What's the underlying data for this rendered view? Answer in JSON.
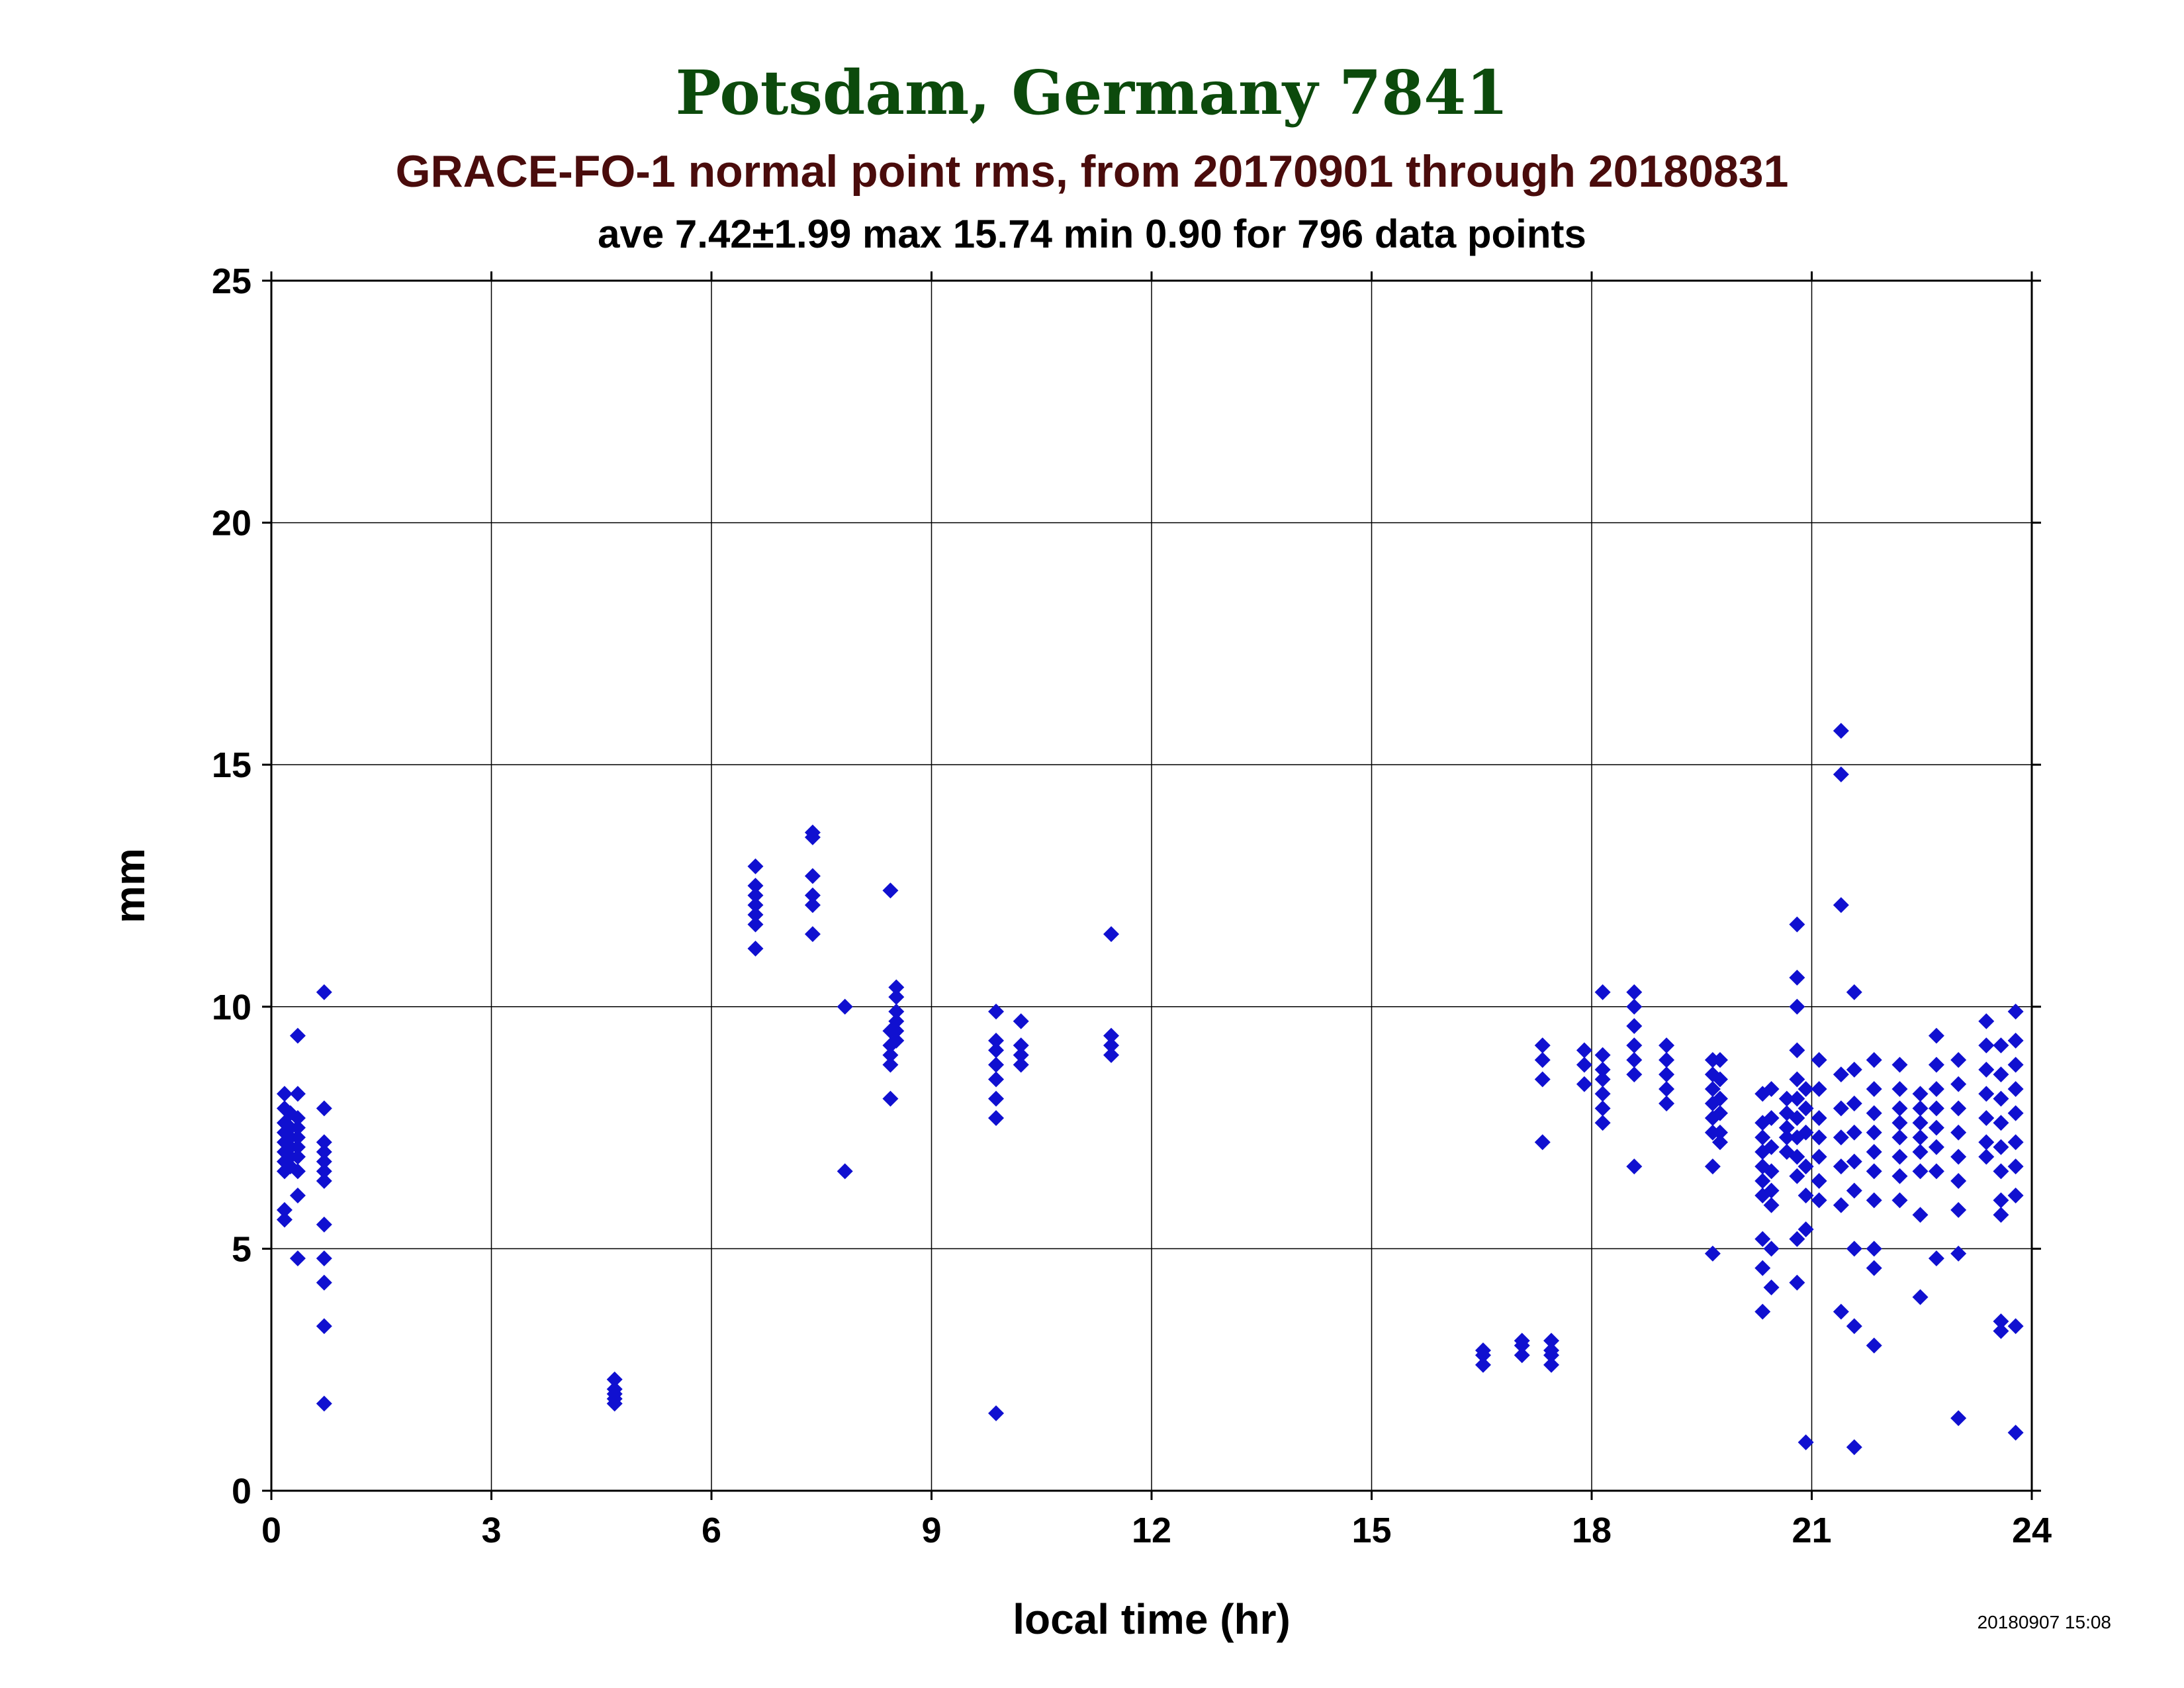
{
  "chart_data": {
    "type": "scatter",
    "title": "Potsdam, Germany 7841",
    "subtitle": "GRACE-FO-1 normal point rms, from 20170901 through 20180831",
    "stats_line": "ave 7.42±1.99 max 15.74 min 0.90 for 796 data points",
    "xlabel": "local time (hr)",
    "ylabel": "mm",
    "timestamp": "20180907 15:08",
    "xlim": [
      0,
      24
    ],
    "ylim": [
      0,
      25
    ],
    "xticks": [
      0,
      3,
      6,
      9,
      12,
      15,
      18,
      21,
      24
    ],
    "yticks": [
      0,
      5,
      10,
      15,
      20,
      25
    ],
    "xtick_labels": [
      "0",
      "3",
      "6",
      "9",
      "12",
      "15",
      "18",
      "21",
      "24"
    ],
    "ytick_labels": [
      "0",
      "5",
      "10",
      "15",
      "20",
      "25"
    ],
    "grid": true,
    "colors": {
      "title": "#0c4a0c",
      "subtitle": "#4a0c0c",
      "marker": "#1010d0",
      "text": "#000000"
    },
    "marker": "diamond",
    "points": [
      [
        0.18,
        8.2
      ],
      [
        0.18,
        7.9
      ],
      [
        0.18,
        7.6
      ],
      [
        0.18,
        7.4
      ],
      [
        0.18,
        7.2
      ],
      [
        0.18,
        7.0
      ],
      [
        0.18,
        6.8
      ],
      [
        0.18,
        6.6
      ],
      [
        0.18,
        5.8
      ],
      [
        0.18,
        5.6
      ],
      [
        0.26,
        7.8
      ],
      [
        0.26,
        7.5
      ],
      [
        0.26,
        7.3
      ],
      [
        0.26,
        7.1
      ],
      [
        0.26,
        6.9
      ],
      [
        0.26,
        6.7
      ],
      [
        0.36,
        9.4
      ],
      [
        0.36,
        8.2
      ],
      [
        0.36,
        7.7
      ],
      [
        0.36,
        7.5
      ],
      [
        0.36,
        7.3
      ],
      [
        0.36,
        7.1
      ],
      [
        0.36,
        6.9
      ],
      [
        0.36,
        6.6
      ],
      [
        0.36,
        6.1
      ],
      [
        0.36,
        4.8
      ],
      [
        0.72,
        10.3
      ],
      [
        0.72,
        7.9
      ],
      [
        0.72,
        7.2
      ],
      [
        0.72,
        7.0
      ],
      [
        0.72,
        6.8
      ],
      [
        0.72,
        6.6
      ],
      [
        0.72,
        6.4
      ],
      [
        0.72,
        5.5
      ],
      [
        0.72,
        4.8
      ],
      [
        0.72,
        4.3
      ],
      [
        0.72,
        3.4
      ],
      [
        0.72,
        1.8
      ],
      [
        4.68,
        2.3
      ],
      [
        4.68,
        2.1
      ],
      [
        4.68,
        2.0
      ],
      [
        4.68,
        1.9
      ],
      [
        4.68,
        1.8
      ],
      [
        6.6,
        12.9
      ],
      [
        6.6,
        12.5
      ],
      [
        6.6,
        12.3
      ],
      [
        6.6,
        12.1
      ],
      [
        6.6,
        11.9
      ],
      [
        6.6,
        11.7
      ],
      [
        6.6,
        11.2
      ],
      [
        7.38,
        13.6
      ],
      [
        7.38,
        13.5
      ],
      [
        7.38,
        12.7
      ],
      [
        7.38,
        12.3
      ],
      [
        7.38,
        12.1
      ],
      [
        7.38,
        11.5
      ],
      [
        7.82,
        10.0
      ],
      [
        7.82,
        6.6
      ],
      [
        8.44,
        12.4
      ],
      [
        8.44,
        9.5
      ],
      [
        8.44,
        9.2
      ],
      [
        8.44,
        9.0
      ],
      [
        8.44,
        8.8
      ],
      [
        8.44,
        8.1
      ],
      [
        8.52,
        10.4
      ],
      [
        8.52,
        10.2
      ],
      [
        8.52,
        9.9
      ],
      [
        8.52,
        9.7
      ],
      [
        8.52,
        9.5
      ],
      [
        8.52,
        9.3
      ],
      [
        9.88,
        9.9
      ],
      [
        9.88,
        9.3
      ],
      [
        9.88,
        9.1
      ],
      [
        9.88,
        8.8
      ],
      [
        9.88,
        8.5
      ],
      [
        9.88,
        8.1
      ],
      [
        9.88,
        7.7
      ],
      [
        9.88,
        1.6
      ],
      [
        10.22,
        9.7
      ],
      [
        10.22,
        9.2
      ],
      [
        10.22,
        9.0
      ],
      [
        10.22,
        8.8
      ],
      [
        11.45,
        11.5
      ],
      [
        11.45,
        9.4
      ],
      [
        11.45,
        9.2
      ],
      [
        11.45,
        9.0
      ],
      [
        16.52,
        2.9
      ],
      [
        16.52,
        2.8
      ],
      [
        16.52,
        2.6
      ],
      [
        17.05,
        3.1
      ],
      [
        17.05,
        3.0
      ],
      [
        17.05,
        2.8
      ],
      [
        17.33,
        9.2
      ],
      [
        17.33,
        8.9
      ],
      [
        17.33,
        8.5
      ],
      [
        17.33,
        7.2
      ],
      [
        17.45,
        3.1
      ],
      [
        17.45,
        2.9
      ],
      [
        17.45,
        2.8
      ],
      [
        17.45,
        2.6
      ],
      [
        17.9,
        9.1
      ],
      [
        17.9,
        8.8
      ],
      [
        17.9,
        8.4
      ],
      [
        18.15,
        10.3
      ],
      [
        18.15,
        9.0
      ],
      [
        18.15,
        8.7
      ],
      [
        18.15,
        8.5
      ],
      [
        18.15,
        8.2
      ],
      [
        18.15,
        7.9
      ],
      [
        18.15,
        7.6
      ],
      [
        18.58,
        10.3
      ],
      [
        18.58,
        10.0
      ],
      [
        18.58,
        9.6
      ],
      [
        18.58,
        9.2
      ],
      [
        18.58,
        8.9
      ],
      [
        18.58,
        8.6
      ],
      [
        18.58,
        6.7
      ],
      [
        19.02,
        9.2
      ],
      [
        19.02,
        8.9
      ],
      [
        19.02,
        8.6
      ],
      [
        19.02,
        8.3
      ],
      [
        19.02,
        8.0
      ],
      [
        19.65,
        8.9
      ],
      [
        19.65,
        8.6
      ],
      [
        19.65,
        8.3
      ],
      [
        19.65,
        8.0
      ],
      [
        19.65,
        7.7
      ],
      [
        19.65,
        7.4
      ],
      [
        19.65,
        6.7
      ],
      [
        19.65,
        4.9
      ],
      [
        19.75,
        8.9
      ],
      [
        19.75,
        8.5
      ],
      [
        19.75,
        8.1
      ],
      [
        19.75,
        7.8
      ],
      [
        19.75,
        7.4
      ],
      [
        19.75,
        7.2
      ],
      [
        20.33,
        8.2
      ],
      [
        20.33,
        7.6
      ],
      [
        20.33,
        7.3
      ],
      [
        20.33,
        7.0
      ],
      [
        20.33,
        6.7
      ],
      [
        20.33,
        6.4
      ],
      [
        20.33,
        6.1
      ],
      [
        20.33,
        5.2
      ],
      [
        20.33,
        4.6
      ],
      [
        20.33,
        3.7
      ],
      [
        20.45,
        8.3
      ],
      [
        20.45,
        7.7
      ],
      [
        20.45,
        7.1
      ],
      [
        20.45,
        6.6
      ],
      [
        20.45,
        6.2
      ],
      [
        20.45,
        5.9
      ],
      [
        20.45,
        5.0
      ],
      [
        20.45,
        4.2
      ],
      [
        20.66,
        8.1
      ],
      [
        20.66,
        7.8
      ],
      [
        20.66,
        7.5
      ],
      [
        20.66,
        7.3
      ],
      [
        20.66,
        7.0
      ],
      [
        20.8,
        11.7
      ],
      [
        20.8,
        10.6
      ],
      [
        20.8,
        10.0
      ],
      [
        20.8,
        9.1
      ],
      [
        20.8,
        8.5
      ],
      [
        20.8,
        8.1
      ],
      [
        20.8,
        7.7
      ],
      [
        20.8,
        7.3
      ],
      [
        20.8,
        6.9
      ],
      [
        20.8,
        6.5
      ],
      [
        20.8,
        5.2
      ],
      [
        20.8,
        4.3
      ],
      [
        20.92,
        8.3
      ],
      [
        20.92,
        7.9
      ],
      [
        20.92,
        7.4
      ],
      [
        20.92,
        6.7
      ],
      [
        20.92,
        6.1
      ],
      [
        20.92,
        5.4
      ],
      [
        20.92,
        1.0
      ],
      [
        21.1,
        8.9
      ],
      [
        21.1,
        8.3
      ],
      [
        21.1,
        7.7
      ],
      [
        21.1,
        7.3
      ],
      [
        21.1,
        6.9
      ],
      [
        21.1,
        6.4
      ],
      [
        21.1,
        6.0
      ],
      [
        21.4,
        15.7
      ],
      [
        21.4,
        14.8
      ],
      [
        21.4,
        12.1
      ],
      [
        21.4,
        8.6
      ],
      [
        21.4,
        7.9
      ],
      [
        21.4,
        7.3
      ],
      [
        21.4,
        6.7
      ],
      [
        21.4,
        5.9
      ],
      [
        21.4,
        3.7
      ],
      [
        21.58,
        10.3
      ],
      [
        21.58,
        8.7
      ],
      [
        21.58,
        8.0
      ],
      [
        21.58,
        7.4
      ],
      [
        21.58,
        6.8
      ],
      [
        21.58,
        6.2
      ],
      [
        21.58,
        5.0
      ],
      [
        21.58,
        3.4
      ],
      [
        21.58,
        0.9
      ],
      [
        21.85,
        8.9
      ],
      [
        21.85,
        8.3
      ],
      [
        21.85,
        7.8
      ],
      [
        21.85,
        7.4
      ],
      [
        21.85,
        7.0
      ],
      [
        21.85,
        6.6
      ],
      [
        21.85,
        6.0
      ],
      [
        21.85,
        5.0
      ],
      [
        21.85,
        4.6
      ],
      [
        21.85,
        3.0
      ],
      [
        22.2,
        8.8
      ],
      [
        22.2,
        8.3
      ],
      [
        22.2,
        7.9
      ],
      [
        22.2,
        7.6
      ],
      [
        22.2,
        7.3
      ],
      [
        22.2,
        6.9
      ],
      [
        22.2,
        6.5
      ],
      [
        22.2,
        6.0
      ],
      [
        22.48,
        8.2
      ],
      [
        22.48,
        7.9
      ],
      [
        22.48,
        7.6
      ],
      [
        22.48,
        7.3
      ],
      [
        22.48,
        7.0
      ],
      [
        22.48,
        6.6
      ],
      [
        22.48,
        5.7
      ],
      [
        22.48,
        4.0
      ],
      [
        22.7,
        9.4
      ],
      [
        22.7,
        8.8
      ],
      [
        22.7,
        8.3
      ],
      [
        22.7,
        7.9
      ],
      [
        22.7,
        7.5
      ],
      [
        22.7,
        7.1
      ],
      [
        22.7,
        6.6
      ],
      [
        22.7,
        4.8
      ],
      [
        23.0,
        8.9
      ],
      [
        23.0,
        8.4
      ],
      [
        23.0,
        7.9
      ],
      [
        23.0,
        7.4
      ],
      [
        23.0,
        6.9
      ],
      [
        23.0,
        6.4
      ],
      [
        23.0,
        5.8
      ],
      [
        23.0,
        4.9
      ],
      [
        23.0,
        1.5
      ],
      [
        23.38,
        9.7
      ],
      [
        23.38,
        9.2
      ],
      [
        23.38,
        8.7
      ],
      [
        23.38,
        8.2
      ],
      [
        23.38,
        7.7
      ],
      [
        23.38,
        7.2
      ],
      [
        23.38,
        6.9
      ],
      [
        23.58,
        9.2
      ],
      [
        23.58,
        8.6
      ],
      [
        23.58,
        8.1
      ],
      [
        23.58,
        7.6
      ],
      [
        23.58,
        7.1
      ],
      [
        23.58,
        6.6
      ],
      [
        23.58,
        6.0
      ],
      [
        23.58,
        5.7
      ],
      [
        23.58,
        3.5
      ],
      [
        23.58,
        3.3
      ],
      [
        23.78,
        9.9
      ],
      [
        23.78,
        9.3
      ],
      [
        23.78,
        8.8
      ],
      [
        23.78,
        8.3
      ],
      [
        23.78,
        7.8
      ],
      [
        23.78,
        7.2
      ],
      [
        23.78,
        6.7
      ],
      [
        23.78,
        6.1
      ],
      [
        23.78,
        3.4
      ],
      [
        23.78,
        1.2
      ]
    ]
  }
}
